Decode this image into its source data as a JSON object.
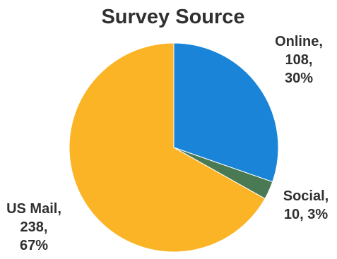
{
  "chart_data": {
    "type": "pie",
    "title": "Survey Source",
    "slices": [
      {
        "label": "Online",
        "value": 108,
        "percent": "30%",
        "color": "#1a84d8"
      },
      {
        "label": "Social",
        "value": 10,
        "percent": "3%",
        "color": "#4a7a53"
      },
      {
        "label": "US Mail",
        "value": 238,
        "percent": "67%",
        "color": "#fbb426"
      }
    ],
    "labels": {
      "online": [
        "Online,",
        "108,",
        "30%"
      ],
      "social": [
        "Social,",
        "10, 3%"
      ],
      "usmail": [
        "US Mail,",
        "238,",
        "67%"
      ]
    }
  }
}
